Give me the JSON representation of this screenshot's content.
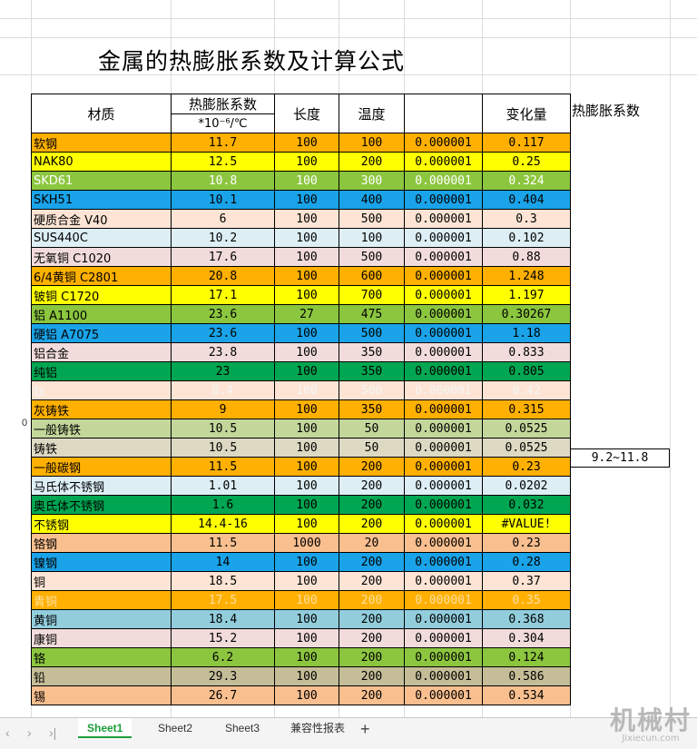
{
  "title": "金属的热膨胀系数及计算公式",
  "side_label": "0",
  "extra_header": "热膨胀系数",
  "extra_range": "9.2~11.8",
  "headers": {
    "material": "材质",
    "coef_top": "热膨胀系数",
    "coef_unit": "*10⁻⁶/℃",
    "length": "长度",
    "temp": "温度",
    "factor": "",
    "change": "变化量"
  },
  "colors": {
    "orange": "#ffb000",
    "yellow": "#ffff00",
    "green": "#8cc63f",
    "blue": "#1aa3e8",
    "peach": "#fde4d4",
    "lightblue": "#ddeef5",
    "pink": "#f2dcdb",
    "dkgreen": "#00a651",
    "sage": "#c4d79b",
    "sand": "#ddd9c3",
    "salmon": "#f9bf8f",
    "steel": "#92cddc",
    "khaki": "#c4bd97"
  },
  "rows": [
    {
      "name": "软钢",
      "coef": "11.7",
      "len": "100",
      "temp": "100",
      "factor": "0.000001",
      "change": "0.117",
      "bg": "orange",
      "fg": "#000"
    },
    {
      "name": "NAK80",
      "coef": "12.5",
      "len": "100",
      "temp": "200",
      "factor": "0.000001",
      "change": "0.25",
      "bg": "yellow",
      "fg": "#000"
    },
    {
      "name": "SKD61",
      "coef": "10.8",
      "len": "100",
      "temp": "300",
      "factor": "0.000001",
      "change": "0.324",
      "bg": "green",
      "fg": "#ffffff"
    },
    {
      "name": "SKH51",
      "coef": "10.1",
      "len": "100",
      "temp": "400",
      "factor": "0.000001",
      "change": "0.404",
      "bg": "blue",
      "fg": "#000"
    },
    {
      "name": "硬质合金 V40",
      "coef": "6",
      "len": "100",
      "temp": "500",
      "factor": "0.000001",
      "change": "0.3",
      "bg": "peach",
      "fg": "#000"
    },
    {
      "name": "SUS440C",
      "coef": "10.2",
      "len": "100",
      "temp": "100",
      "factor": "0.000001",
      "change": "0.102",
      "bg": "lightblue",
      "fg": "#000"
    },
    {
      "name": "无氧铜 C1020",
      "coef": "17.6",
      "len": "100",
      "temp": "500",
      "factor": "0.000001",
      "change": "0.88",
      "bg": "pink",
      "fg": "#000"
    },
    {
      "name": "6/4黄铜 C2801",
      "coef": "20.8",
      "len": "100",
      "temp": "600",
      "factor": "0.000001",
      "change": "1.248",
      "bg": "orange",
      "fg": "#000"
    },
    {
      "name": "铍铜 C1720",
      "coef": "17.1",
      "len": "100",
      "temp": "700",
      "factor": "0.000001",
      "change": "1.197",
      "bg": "yellow",
      "fg": "#000"
    },
    {
      "name": "铝 A1100",
      "coef": "23.6",
      "len": "27",
      "temp": "475",
      "factor": "0.000001",
      "change": "0.30267",
      "bg": "green",
      "fg": "#000"
    },
    {
      "name": "硬铝 A7075",
      "coef": "23.6",
      "len": "100",
      "temp": "500",
      "factor": "0.000001",
      "change": "1.18",
      "bg": "blue",
      "fg": "#000"
    },
    {
      "name": "铝合金",
      "coef": "23.8",
      "len": "100",
      "temp": "350",
      "factor": "0.000001",
      "change": "0.833",
      "bg": "pink",
      "fg": "#000"
    },
    {
      "name": "纯铝",
      "coef": "23",
      "len": "100",
      "temp": "350",
      "factor": "0.000001",
      "change": "0.805",
      "bg": "dkgreen",
      "fg": "#000"
    },
    {
      "name": "钛",
      "coef": "8.4",
      "len": "100",
      "temp": "500",
      "factor": "0.000001",
      "change": "0.42",
      "bg": "peach",
      "fg": "#f5f5f5"
    },
    {
      "name": "灰铸铁",
      "coef": "9",
      "len": "100",
      "temp": "350",
      "factor": "0.000001",
      "change": "0.315",
      "bg": "orange",
      "fg": "#000"
    },
    {
      "name": "一般铸铁",
      "coef": "10.5",
      "len": "100",
      "temp": "50",
      "factor": "0.000001",
      "change": "0.0525",
      "bg": "sage",
      "fg": "#000"
    },
    {
      "name": "铸铁",
      "coef": "10.5",
      "len": "100",
      "temp": "50",
      "factor": "0.000001",
      "change": "0.0525",
      "bg": "sand",
      "fg": "#000"
    },
    {
      "name": "一般碳钢",
      "coef": "11.5",
      "len": "100",
      "temp": "200",
      "factor": "0.000001",
      "change": "0.23",
      "bg": "orange",
      "fg": "#000"
    },
    {
      "name": "马氏体不锈钢",
      "coef": "1.01",
      "len": "100",
      "temp": "200",
      "factor": "0.000001",
      "change": "0.0202",
      "bg": "lightblue",
      "fg": "#000"
    },
    {
      "name": "奥氏体不锈钢",
      "coef": "1.6",
      "len": "100",
      "temp": "200",
      "factor": "0.000001",
      "change": "0.032",
      "bg": "dkgreen",
      "fg": "#000"
    },
    {
      "name": "不锈钢",
      "coef": "14.4-16",
      "len": "100",
      "temp": "200",
      "factor": "0.000001",
      "change": "#VALUE!",
      "bg": "yellow",
      "fg": "#000"
    },
    {
      "name": "铬钢",
      "coef": "11.5",
      "len": "1000",
      "temp": "20",
      "factor": "0.000001",
      "change": "0.23",
      "bg": "salmon",
      "fg": "#000"
    },
    {
      "name": "镍钢",
      "coef": "14",
      "len": "100",
      "temp": "200",
      "factor": "0.000001",
      "change": "0.28",
      "bg": "blue",
      "fg": "#000"
    },
    {
      "name": "铜",
      "coef": "18.5",
      "len": "100",
      "temp": "200",
      "factor": "0.000001",
      "change": "0.37",
      "bg": "peach",
      "fg": "#000"
    },
    {
      "name": "青铜",
      "coef": "17.5",
      "len": "100",
      "temp": "200",
      "factor": "0.000001",
      "change": "0.35",
      "bg": "orange",
      "fg": "#ffe0a0"
    },
    {
      "name": "黄铜",
      "coef": "18.4",
      "len": "100",
      "temp": "200",
      "factor": "0.000001",
      "change": "0.368",
      "bg": "steel",
      "fg": "#000"
    },
    {
      "name": "康铜",
      "coef": "15.2",
      "len": "100",
      "temp": "200",
      "factor": "0.000001",
      "change": "0.304",
      "bg": "pink",
      "fg": "#000"
    },
    {
      "name": "铬",
      "coef": "6.2",
      "len": "100",
      "temp": "200",
      "factor": "0.000001",
      "change": "0.124",
      "bg": "green",
      "fg": "#000"
    },
    {
      "name": "铅",
      "coef": "29.3",
      "len": "100",
      "temp": "200",
      "factor": "0.000001",
      "change": "0.586",
      "bg": "khaki",
      "fg": "#000"
    },
    {
      "name": "锡",
      "coef": "26.7",
      "len": "100",
      "temp": "200",
      "factor": "0.000001",
      "change": "0.534",
      "bg": "salmon",
      "fg": "#000"
    }
  ],
  "sheet_tabs": [
    {
      "label": "Sheet1",
      "active": true
    },
    {
      "label": "Sheet2",
      "active": false
    },
    {
      "label": "Sheet3",
      "active": false
    },
    {
      "label": "兼容性报表",
      "active": false
    }
  ],
  "add_tab": "+",
  "nav_icons": [
    "first-sheet-icon",
    "prev-sheet-icon",
    "next-sheet-icon",
    "last-sheet-icon"
  ],
  "watermark": {
    "main": "机械村",
    "sub": "Jixiecun.com"
  }
}
